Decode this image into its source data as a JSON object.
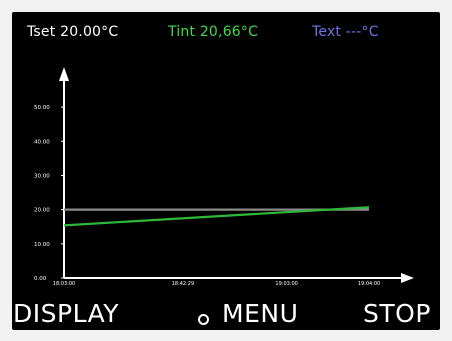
{
  "header": {
    "tset": "Tset 20.00°C",
    "tint": "Tint 20,66°C",
    "text": "Text ---°C"
  },
  "buttons": {
    "display": "DISPLAY",
    "menu": "MENU",
    "stop": "STOP"
  },
  "icons": {
    "menu": "circle-icon"
  },
  "colors": {
    "tset": "#ffffff",
    "tint": "#3fdb4a",
    "text": "#6f73e6",
    "tset_line": "#8c8c8c",
    "tint_line": "#2fb83a",
    "axis": "#ffffff",
    "background": "#000000"
  },
  "chart_data": {
    "type": "line",
    "y_tick_labels": [
      "0.00",
      "10.00",
      "20.00",
      "30.00",
      "40.00",
      "50.00"
    ],
    "x_tick_labels": [
      "18:03:00",
      "18:42:29",
      "19:03:00",
      "19:04:00"
    ],
    "ylim": [
      0,
      55
    ],
    "series": [
      {
        "name": "Tset",
        "x": [
          0,
          1
        ],
        "values": [
          20.0,
          20.0
        ]
      },
      {
        "name": "Tint",
        "x": [
          0,
          1
        ],
        "values": [
          15.4,
          20.7
        ]
      }
    ],
    "grid": false
  }
}
